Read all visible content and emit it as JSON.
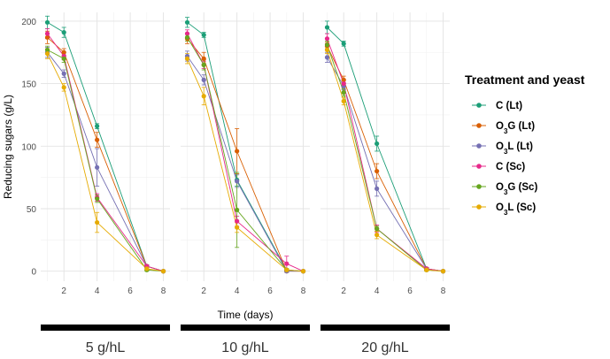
{
  "chart_data": {
    "type": "line",
    "ylabel": "Reducing sugars (g/L)",
    "xlabel": "Time (days)",
    "ylim": [
      -8,
      207
    ],
    "yticks": [
      0,
      50,
      100,
      150,
      200
    ],
    "xlim": [
      0.6,
      8.4
    ],
    "xticks": [
      2,
      4,
      6,
      8
    ],
    "x": [
      1,
      2,
      4,
      7,
      8
    ],
    "grid": true,
    "legend": {
      "title": "Treatment and yeast",
      "position": "right",
      "entries": [
        {
          "base": "C",
          "sub": "",
          "suffix": " (Lt)"
        },
        {
          "base": "O",
          "sub": "3",
          "suffix": "G (Lt)"
        },
        {
          "base": "O",
          "sub": "3",
          "suffix": "L (Lt)"
        },
        {
          "base": "C",
          "sub": "",
          "suffix": " (Sc)"
        },
        {
          "base": "O",
          "sub": "3",
          "suffix": "G (Sc)"
        },
        {
          "base": "O",
          "sub": "3",
          "suffix": "L (Sc)"
        }
      ]
    },
    "series_colors": [
      "#1b9e77",
      "#d95f02",
      "#7570b3",
      "#e7298a",
      "#66a61e",
      "#e6ab02"
    ],
    "panels": [
      {
        "label": "5 g/hL",
        "series": [
          {
            "name": "C (Lt)",
            "values": [
              199,
              191,
              116,
              4,
              0
            ],
            "err": [
              5,
              4,
              2,
              1,
              0
            ]
          },
          {
            "name": "O3G (Lt)",
            "values": [
              187,
              175,
              105,
              4,
              0
            ],
            "err": [
              5,
              3,
              6,
              1,
              0
            ]
          },
          {
            "name": "O3L (Lt)",
            "values": [
              175,
              158,
              83,
              4,
              0
            ],
            "err": [
              4,
              3,
              15,
              1,
              0
            ]
          },
          {
            "name": "C (Sc)",
            "values": [
              190,
              172,
              59,
              4,
              0
            ],
            "err": [
              4,
              3,
              3,
              1,
              0
            ]
          },
          {
            "name": "O3G (Sc)",
            "values": [
              177,
              170,
              58,
              1,
              0
            ],
            "err": [
              3,
              3,
              3,
              1,
              0
            ]
          },
          {
            "name": "O3L (Sc)",
            "values": [
              174,
              147,
              39,
              2,
              0
            ],
            "err": [
              4,
              3,
              8,
              1,
              0
            ]
          }
        ]
      },
      {
        "label": "10 g/hL",
        "series": [
          {
            "name": "C (Lt)",
            "values": [
              199,
              189,
              73,
              1,
              0
            ],
            "err": [
              4,
              2,
              5,
              1,
              0
            ]
          },
          {
            "name": "O3G (Lt)",
            "values": [
              186,
              170,
              96,
              0,
              0
            ],
            "err": [
              4,
              5,
              18,
              1,
              0
            ]
          },
          {
            "name": "O3L (Lt)",
            "values": [
              172,
              153,
              72,
              0,
              0
            ],
            "err": [
              4,
              4,
              5,
              1,
              0
            ]
          },
          {
            "name": "C (Sc)",
            "values": [
              190,
              165,
              40,
              6,
              0
            ],
            "err": [
              3,
              3,
              4,
              6,
              0
            ]
          },
          {
            "name": "O3G (Sc)",
            "values": [
              187,
              165,
              49,
              1,
              0
            ],
            "err": [
              3,
              4,
              30,
              1,
              0
            ]
          },
          {
            "name": "O3L (Sc)",
            "values": [
              170,
              140,
              35,
              1,
              0
            ],
            "err": [
              4,
              7,
              4,
              1,
              0
            ]
          }
        ]
      },
      {
        "label": "20 g/hL",
        "series": [
          {
            "name": "C (Lt)",
            "values": [
              195,
              182,
              102,
              2,
              0
            ],
            "err": [
              5,
              2,
              6,
              1,
              0
            ]
          },
          {
            "name": "O3G (Lt)",
            "values": [
              180,
              153,
              80,
              2,
              0
            ],
            "err": [
              3,
              3,
              6,
              1,
              0
            ]
          },
          {
            "name": "O3L (Lt)",
            "values": [
              171,
              148,
              66,
              2,
              0
            ],
            "err": [
              4,
              3,
              6,
              1,
              0
            ]
          },
          {
            "name": "C (Sc)",
            "values": [
              186,
              150,
              34,
              2,
              0
            ],
            "err": [
              4,
              3,
              3,
              1,
              0
            ]
          },
          {
            "name": "O3G (Sc)",
            "values": [
              181,
              143,
              34,
              1,
              0
            ],
            "err": [
              3,
              3,
              2,
              1,
              0
            ]
          },
          {
            "name": "O3L (Sc)",
            "values": [
              177,
              136,
              29,
              1,
              0
            ],
            "err": [
              3,
              3,
              3,
              1,
              0
            ]
          }
        ]
      }
    ]
  }
}
